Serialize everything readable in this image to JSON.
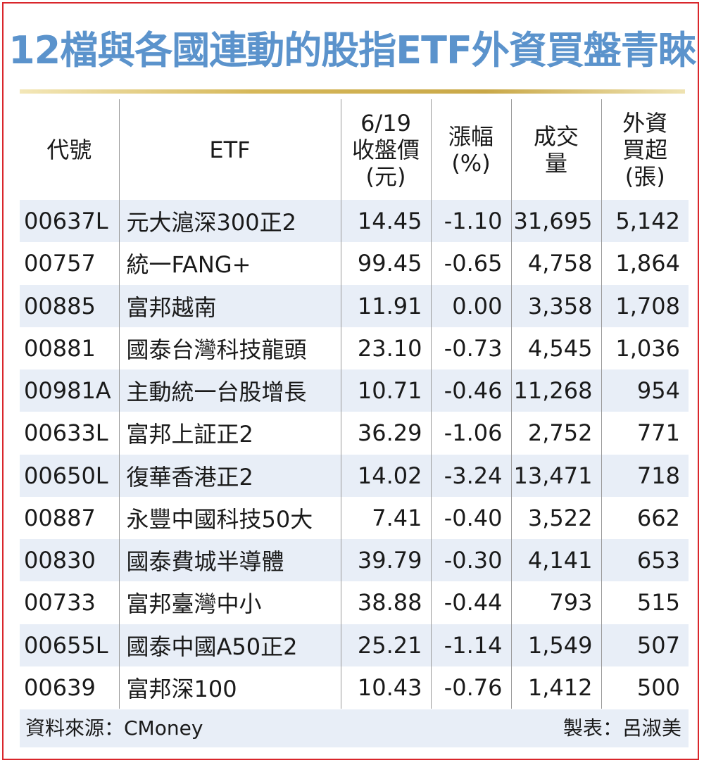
{
  "title": "12檔與各國連動的股指ETF外資買盤青睞",
  "colors": {
    "title": "#5b93cc",
    "border": "#d9262b",
    "stripe": "#e8eef7"
  },
  "table": {
    "headers": {
      "code": "代號",
      "etf": "ETF",
      "close_l1": "6/19",
      "close_l2": "收盤價",
      "close_l3": "(元)",
      "change_l1": "漲幅",
      "change_l2": "(%)",
      "volume_l1": "成交",
      "volume_l2": "量",
      "foreign_l1": "外資",
      "foreign_l2": "買超",
      "foreign_l3": "(張)"
    },
    "rows": [
      {
        "code": "00637L",
        "etf": "元大滬深300正2",
        "close": "14.45",
        "change": "-1.10",
        "volume": "31,695",
        "foreign": "5,142"
      },
      {
        "code": "00757",
        "etf": "統一FANG+",
        "close": "99.45",
        "change": "-0.65",
        "volume": "4,758",
        "foreign": "1,864"
      },
      {
        "code": "00885",
        "etf": "富邦越南",
        "close": "11.91",
        "change": "0.00",
        "volume": "3,358",
        "foreign": "1,708"
      },
      {
        "code": "00881",
        "etf": "國泰台灣科技龍頭",
        "close": "23.10",
        "change": "-0.73",
        "volume": "4,545",
        "foreign": "1,036"
      },
      {
        "code": "00981A",
        "etf": "主動統一台股增長",
        "close": "10.71",
        "change": "-0.46",
        "volume": "11,268",
        "foreign": "954"
      },
      {
        "code": "00633L",
        "etf": "富邦上証正2",
        "close": "36.29",
        "change": "-1.06",
        "volume": "2,752",
        "foreign": "771"
      },
      {
        "code": "00650L",
        "etf": "復華香港正2",
        "close": "14.02",
        "change": "-3.24",
        "volume": "13,471",
        "foreign": "718"
      },
      {
        "code": "00887",
        "etf": "永豐中國科技50大",
        "close": "7.41",
        "change": "-0.40",
        "volume": "3,522",
        "foreign": "662"
      },
      {
        "code": "00830",
        "etf": "國泰費城半導體",
        "close": "39.79",
        "change": "-0.30",
        "volume": "4,141",
        "foreign": "653"
      },
      {
        "code": "00733",
        "etf": "富邦臺灣中小",
        "close": "38.88",
        "change": "-0.44",
        "volume": "793",
        "foreign": "515"
      },
      {
        "code": "00655L",
        "etf": "國泰中國A50正2",
        "close": "25.21",
        "change": "-1.14",
        "volume": "1,549",
        "foreign": "507"
      },
      {
        "code": "00639",
        "etf": "富邦深100",
        "close": "10.43",
        "change": "-0.76",
        "volume": "1,412",
        "foreign": "500"
      }
    ]
  },
  "footer": {
    "source": "資料來源：CMoney",
    "maker": "製表：呂淑美"
  }
}
